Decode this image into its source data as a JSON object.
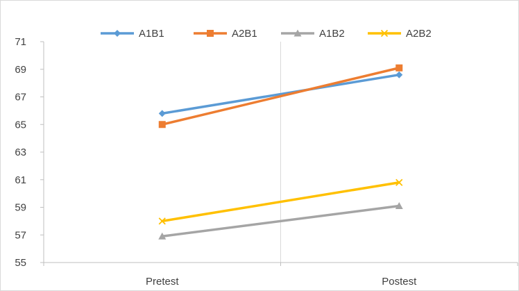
{
  "chart_data": {
    "type": "line",
    "categories": [
      "Pretest",
      "Postest"
    ],
    "series": [
      {
        "name": "A1B1",
        "values": [
          65.8,
          68.6
        ],
        "color": "#5B9BD5",
        "marker": "diamond"
      },
      {
        "name": "A2B1",
        "values": [
          65.0,
          69.1
        ],
        "color": "#ED7D31",
        "marker": "square"
      },
      {
        "name": "A1B2",
        "values": [
          56.9,
          59.1
        ],
        "color": "#A5A5A5",
        "marker": "triangle"
      },
      {
        "name": "A2B2",
        "values": [
          58.0,
          60.8
        ],
        "color": "#FFC000",
        "marker": "x"
      }
    ],
    "ylim": [
      55,
      71
    ],
    "yticks": [
      55,
      57,
      59,
      61,
      63,
      65,
      67,
      69,
      71
    ],
    "ytick_labels": [
      "55",
      "57",
      "59",
      "61",
      "63",
      "65",
      "67",
      "69",
      "71"
    ],
    "xlabel": "",
    "ylabel": "",
    "title": "",
    "grid": "vertical-category-dividers",
    "legend": "top-center",
    "colors": {
      "grid": "#D9D9D9",
      "axis": "#BFBFBF",
      "text": "#404040"
    }
  }
}
